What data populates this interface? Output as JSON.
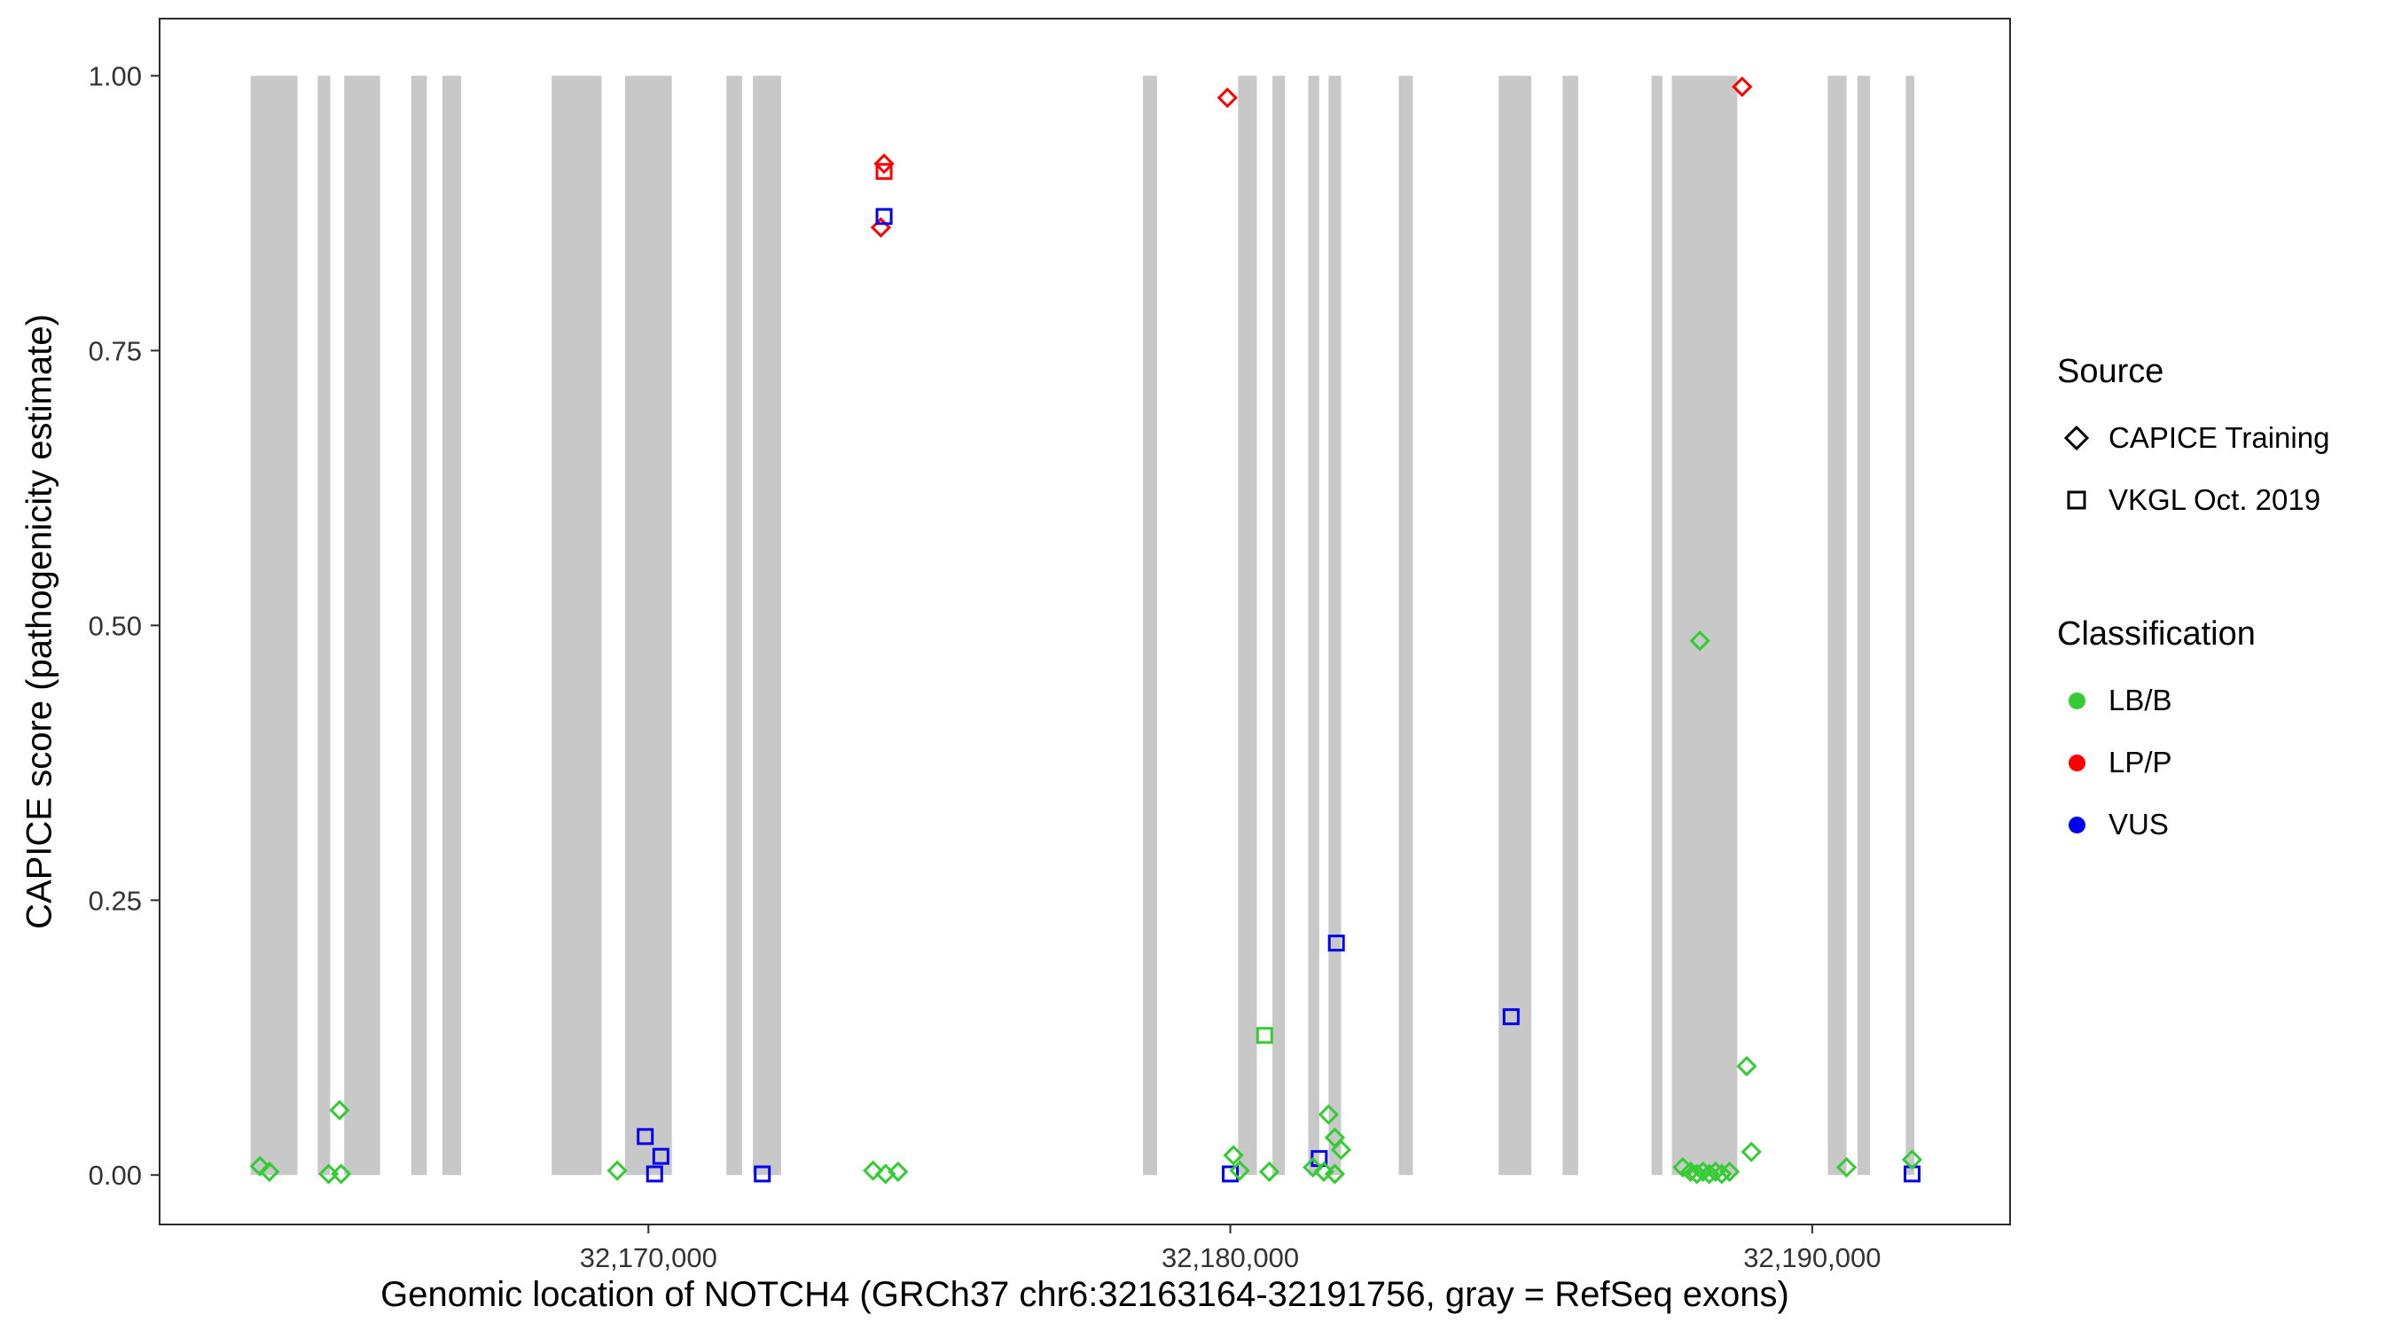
{
  "axes": {
    "x": {
      "title": "Genomic location of NOTCH4 (GRCh37 chr6:32163164-32191756, gray = RefSeq exons)",
      "domain": [
        32161600,
        32193400
      ],
      "ticks": [
        {
          "label": "32,170,000",
          "value": 32170000
        },
        {
          "label": "32,180,000",
          "value": 32180000
        },
        {
          "label": "32,190,000",
          "value": 32190000
        }
      ]
    },
    "y": {
      "title": "CAPICE score (pathogenicity estimate)",
      "domain": [
        -0.045,
        1.052
      ],
      "ticks": [
        {
          "label": "0.00",
          "value": 0
        },
        {
          "label": "0.25",
          "value": 0.25
        },
        {
          "label": "0.50",
          "value": 0.5
        },
        {
          "label": "0.75",
          "value": 0.75
        },
        {
          "label": "1.00",
          "value": 1
        }
      ]
    }
  },
  "legend": {
    "source": {
      "title": "Source",
      "items": [
        {
          "label": "CAPICE Training",
          "shape": "diamond"
        },
        {
          "label": "VKGL Oct. 2019",
          "shape": "square"
        }
      ]
    },
    "classification": {
      "title": "Classification",
      "items": [
        {
          "label": "LB/B",
          "color": "#33CC33"
        },
        {
          "label": "LP/P",
          "color": "#FF0000"
        },
        {
          "label": "VUS",
          "color": "#0000EE"
        }
      ]
    }
  },
  "colors": {
    "exon": "#C8C8C8",
    "panel_border": "#2B2B2B",
    "tick_label": "#333333",
    "classification": {
      "LB/B": "#33CC33",
      "LP/P": "#FF0000",
      "VUS": "#0000EE"
    }
  },
  "chart_data": {
    "type": "scatter",
    "title": "",
    "xlabel": "Genomic location of NOTCH4 (GRCh37 chr6:32163164-32191756, gray = RefSeq exons)",
    "ylabel": "CAPICE score (pathogenicity estimate)",
    "xlim": [
      32161600,
      32193400
    ],
    "ylim": [
      0,
      1
    ],
    "gene_range": [
      32163164,
      32191756
    ],
    "legend_position": "right",
    "grid": false,
    "exon_bars_y": [
      0,
      1
    ],
    "exons_gray": [
      [
        32163164,
        32163970
      ],
      [
        32164316,
        32164531
      ],
      [
        32164772,
        32165389
      ],
      [
        32165925,
        32166193
      ],
      [
        32166461,
        32166783
      ],
      [
        32168338,
        32169196
      ],
      [
        32169598,
        32170402
      ],
      [
        32171340,
        32171609
      ],
      [
        32171796,
        32172279
      ],
      [
        32178499,
        32178740
      ],
      [
        32180134,
        32180456
      ],
      [
        32180724,
        32180938
      ],
      [
        32181340,
        32181528
      ],
      [
        32181689,
        32181903
      ],
      [
        32182895,
        32183137
      ],
      [
        32184611,
        32185174
      ],
      [
        32185710,
        32185979
      ],
      [
        32187239,
        32187426
      ],
      [
        32187587,
        32188713
      ],
      [
        32190268,
        32190590
      ],
      [
        32190777,
        32190992
      ],
      [
        32191608,
        32191756
      ]
    ],
    "points": [
      {
        "x": 32179950,
        "y": 0.98,
        "source": "CAPICE Training",
        "classification": "LP/P"
      },
      {
        "x": 32188795,
        "y": 0.99,
        "source": "CAPICE Training",
        "classification": "LP/P"
      },
      {
        "x": 32174050,
        "y": 0.92,
        "source": "CAPICE Training",
        "classification": "LP/P"
      },
      {
        "x": 32174050,
        "y": 0.913,
        "source": "VKGL Oct. 2019",
        "classification": "LP/P"
      },
      {
        "x": 32173995,
        "y": 0.862,
        "source": "CAPICE Training",
        "classification": "LP/P"
      },
      {
        "x": 32174050,
        "y": 0.872,
        "source": "VKGL Oct. 2019",
        "classification": "VUS"
      },
      {
        "x": 32181823,
        "y": 0.211,
        "source": "VKGL Oct. 2019",
        "classification": "VUS"
      },
      {
        "x": 32184826,
        "y": 0.144,
        "source": "VKGL Oct. 2019",
        "classification": "VUS"
      },
      {
        "x": 32169946,
        "y": 0.035,
        "source": "VKGL Oct. 2019",
        "classification": "VUS"
      },
      {
        "x": 32170214,
        "y": 0.017,
        "source": "VKGL Oct. 2019",
        "classification": "VUS"
      },
      {
        "x": 32181528,
        "y": 0.015,
        "source": "VKGL Oct. 2019",
        "classification": "VUS"
      },
      {
        "x": 32170107,
        "y": 0.001,
        "source": "VKGL Oct. 2019",
        "classification": "VUS"
      },
      {
        "x": 32171957,
        "y": 0.001,
        "source": "VKGL Oct. 2019",
        "classification": "VUS"
      },
      {
        "x": 32180000,
        "y": 0.001,
        "source": "VKGL Oct. 2019",
        "classification": "VUS"
      },
      {
        "x": 32191716,
        "y": 0.001,
        "source": "VKGL Oct. 2019",
        "classification": "VUS"
      },
      {
        "x": 32188070,
        "y": 0.486,
        "source": "CAPICE Training",
        "classification": "LB/B"
      },
      {
        "x": 32180590,
        "y": 0.127,
        "source": "VKGL Oct. 2019",
        "classification": "LB/B"
      },
      {
        "x": 32188874,
        "y": 0.099,
        "source": "CAPICE Training",
        "classification": "LB/B"
      },
      {
        "x": 32164692,
        "y": 0.059,
        "source": "CAPICE Training",
        "classification": "LB/B"
      },
      {
        "x": 32181689,
        "y": 0.055,
        "source": "CAPICE Training",
        "classification": "LB/B"
      },
      {
        "x": 32181796,
        "y": 0.034,
        "source": "CAPICE Training",
        "classification": "LB/B"
      },
      {
        "x": 32181903,
        "y": 0.023,
        "source": "CAPICE Training",
        "classification": "LB/B"
      },
      {
        "x": 32188954,
        "y": 0.021,
        "source": "CAPICE Training",
        "classification": "LB/B"
      },
      {
        "x": 32180054,
        "y": 0.018,
        "source": "CAPICE Training",
        "classification": "LB/B"
      },
      {
        "x": 32191716,
        "y": 0.014,
        "source": "CAPICE Training",
        "classification": "LB/B"
      },
      {
        "x": 32163325,
        "y": 0.008,
        "source": "CAPICE Training",
        "classification": "LB/B"
      },
      {
        "x": 32163486,
        "y": 0.003,
        "source": "CAPICE Training",
        "classification": "LB/B"
      },
      {
        "x": 32164504,
        "y": 0.001,
        "source": "CAPICE Training",
        "classification": "LB/B"
      },
      {
        "x": 32164719,
        "y": 0.001,
        "source": "CAPICE Training",
        "classification": "LB/B"
      },
      {
        "x": 32169464,
        "y": 0.004,
        "source": "CAPICE Training",
        "classification": "LB/B"
      },
      {
        "x": 32173861,
        "y": 0.004,
        "source": "CAPICE Training",
        "classification": "LB/B"
      },
      {
        "x": 32174076,
        "y": 0.001,
        "source": "CAPICE Training",
        "classification": "LB/B"
      },
      {
        "x": 32174290,
        "y": 0.003,
        "source": "CAPICE Training",
        "classification": "LB/B"
      },
      {
        "x": 32180161,
        "y": 0.004,
        "source": "CAPICE Training",
        "classification": "LB/B"
      },
      {
        "x": 32180670,
        "y": 0.003,
        "source": "CAPICE Training",
        "classification": "LB/B"
      },
      {
        "x": 32181421,
        "y": 0.007,
        "source": "CAPICE Training",
        "classification": "LB/B"
      },
      {
        "x": 32181608,
        "y": 0.003,
        "source": "CAPICE Training",
        "classification": "LB/B"
      },
      {
        "x": 32181796,
        "y": 0.001,
        "source": "CAPICE Training",
        "classification": "LB/B"
      },
      {
        "x": 32187775,
        "y": 0.007,
        "source": "CAPICE Training",
        "classification": "LB/B"
      },
      {
        "x": 32187909,
        "y": 0.003,
        "source": "CAPICE Training",
        "classification": "LB/B"
      },
      {
        "x": 32188016,
        "y": 0.001,
        "source": "CAPICE Training",
        "classification": "LB/B"
      },
      {
        "x": 32188123,
        "y": 0.003,
        "source": "CAPICE Training",
        "classification": "LB/B"
      },
      {
        "x": 32188231,
        "y": 0.001,
        "source": "CAPICE Training",
        "classification": "LB/B"
      },
      {
        "x": 32188338,
        "y": 0.003,
        "source": "CAPICE Training",
        "classification": "LB/B"
      },
      {
        "x": 32188445,
        "y": 0.001,
        "source": "CAPICE Training",
        "classification": "LB/B"
      },
      {
        "x": 32188579,
        "y": 0.003,
        "source": "CAPICE Training",
        "classification": "LB/B"
      },
      {
        "x": 32190590,
        "y": 0.007,
        "source": "CAPICE Training",
        "classification": "LB/B"
      }
    ]
  }
}
